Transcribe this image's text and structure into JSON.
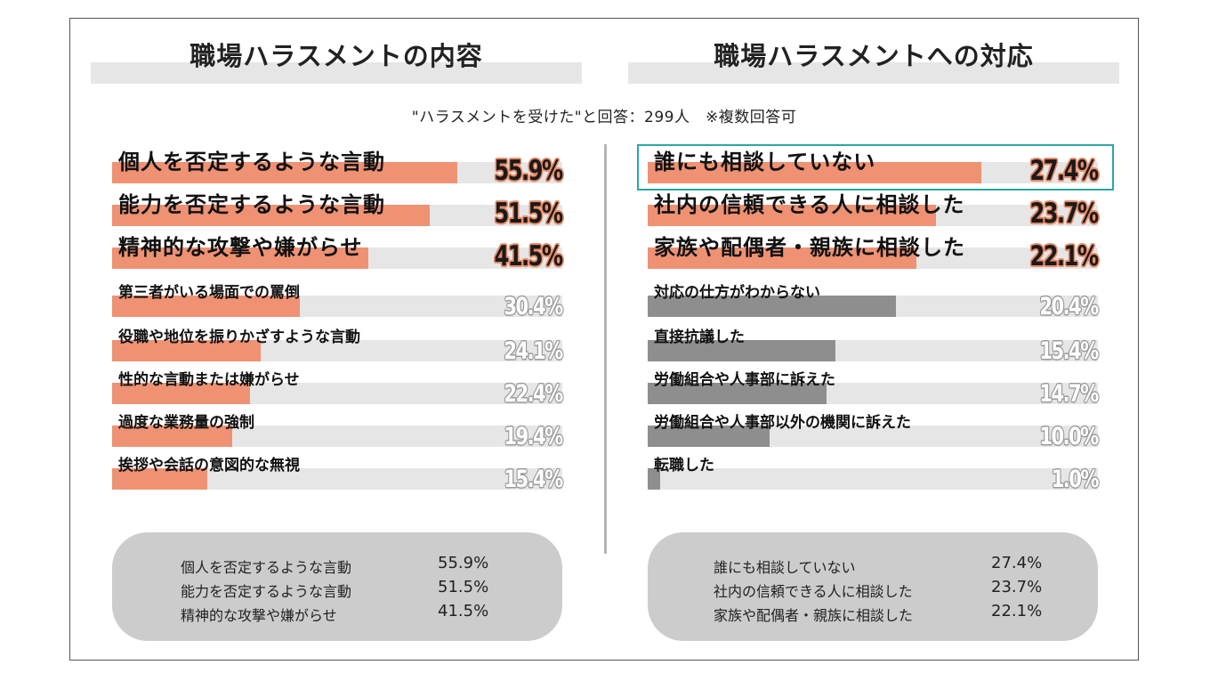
{
  "subtitle": "\"ハラスメントを受けた\"と回答：299人　※複数回答可",
  "colors": {
    "left_bar": "#ee9273",
    "right_top_bar": "#ee9273",
    "right_other_bar": "#8e8e8e",
    "track": "#e6e6e6",
    "highlight_border": "#2aa6a6",
    "summary_bg": "#cccccc"
  },
  "chart_data": [
    {
      "type": "bar",
      "title": "職場ハラスメントの内容",
      "categories": [
        "個人を否定するような言動",
        "能力を否定するような言動",
        "精神的な攻撃や嫌がらせ",
        "第三者がいる場面での罵倒",
        "役職や地位を振りかざすような言動",
        "性的な言動または嫌がらせ",
        "過度な業務量の強制",
        "挨拶や会話の意図的な無視"
      ],
      "values": [
        55.9,
        51.5,
        41.5,
        30.4,
        24.1,
        22.4,
        19.4,
        15.4
      ],
      "labels": [
        "55.9%",
        "51.5%",
        "41.5%",
        "30.4%",
        "24.1%",
        "22.4%",
        "19.4%",
        "15.4%"
      ],
      "unit": "%",
      "xlim": [
        0,
        73
      ]
    },
    {
      "type": "bar",
      "title": "職場ハラスメントへの対応",
      "categories": [
        "誰にも相談していない",
        "社内の信頼できる人に相談した",
        "家族や配偶者・親族に相談した",
        "対応の仕方がわからない",
        "直接抗議した",
        "労働組合や人事部に訴えた",
        "労働組合や人事部以外の機関に訴えた",
        "転職した"
      ],
      "values": [
        27.4,
        23.7,
        22.1,
        20.4,
        15.4,
        14.7,
        10.0,
        1.0
      ],
      "labels": [
        "27.4%",
        "23.7%",
        "22.1%",
        "20.4%",
        "15.4%",
        "14.7%",
        "10.0%",
        "1.0%"
      ],
      "unit": "%",
      "xlim": [
        0,
        37
      ],
      "highlighted": "誰にも相談していない"
    }
  ],
  "summary_left": [
    {
      "label": "個人を否定するような言動",
      "value": "55.9%"
    },
    {
      "label": "能力を否定するような言動",
      "value": "51.5%"
    },
    {
      "label": "精神的な攻撃や嫌がらせ",
      "value": "41.5%"
    }
  ],
  "summary_right": [
    {
      "label": "誰にも相談していない",
      "value": "27.4%"
    },
    {
      "label": "社内の信頼できる人に相談した",
      "value": "23.7%"
    },
    {
      "label": "家族や配偶者・親族に相談した",
      "value": "22.1%"
    }
  ]
}
